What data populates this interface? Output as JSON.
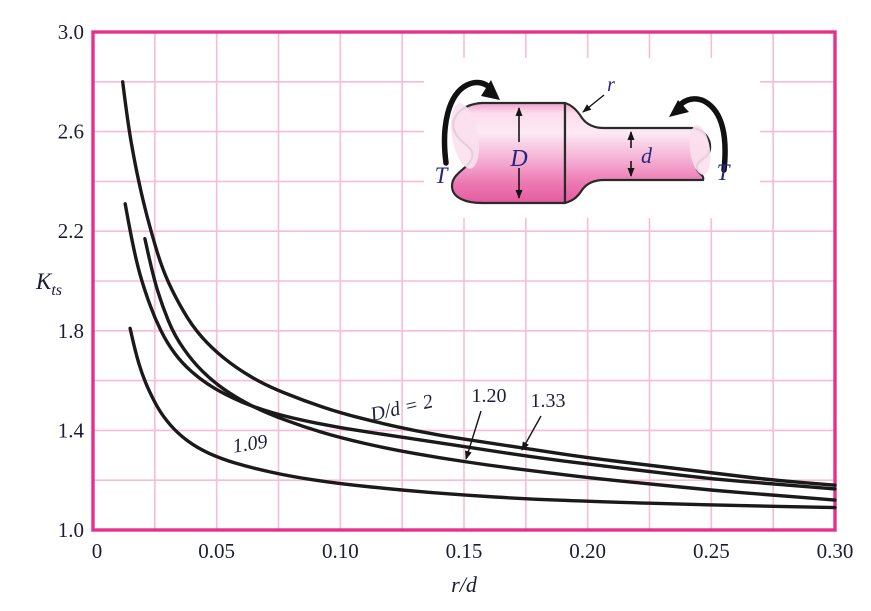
{
  "figure": {
    "background": "#ffffff",
    "colors": {
      "grid": "#f8bcd8",
      "border": "#e6308f",
      "curve": "#1a1a1a",
      "tick_text": "#1c1c35",
      "annotation_text": "#1e1e3f",
      "diagram_letter": "#26267d",
      "shaft_outline": "#2a2a2a",
      "shaft_light": "#fbdcec",
      "shaft_dark": "#e55b9f"
    }
  },
  "chart_data": {
    "type": "line",
    "title": "",
    "xlabel": "r/d",
    "ylabel_main": "K",
    "ylabel_sub": "ts",
    "xlim": [
      0,
      0.3
    ],
    "ylim": [
      1.0,
      3.0
    ],
    "grid": "on, pink minor grid every 0.025 in x and 0.2 in y",
    "legend_position": "labels on curves",
    "x_ticks": {
      "values": [
        0,
        0.05,
        0.1,
        0.15,
        0.2,
        0.25,
        0.3
      ],
      "labels": [
        "0",
        "0.05",
        "0.10",
        "0.15",
        "0.20",
        "0.25",
        "0.30"
      ]
    },
    "y_ticks": {
      "values": [
        3.0,
        2.6,
        2.2,
        1.8,
        1.4,
        1.0
      ],
      "labels": [
        "3.0",
        "2.6",
        "2.2",
        "1.8",
        "1.4",
        "1.0"
      ]
    },
    "series": [
      {
        "name": "D/d = 2",
        "points": [
          [
            0.012,
            2.8
          ],
          [
            0.014,
            2.64
          ],
          [
            0.017,
            2.47
          ],
          [
            0.02,
            2.33
          ],
          [
            0.024,
            2.18
          ],
          [
            0.028,
            2.05
          ],
          [
            0.033,
            1.94
          ],
          [
            0.04,
            1.82
          ],
          [
            0.048,
            1.73
          ],
          [
            0.058,
            1.65
          ],
          [
            0.07,
            1.58
          ],
          [
            0.085,
            1.52
          ],
          [
            0.1,
            1.47
          ],
          [
            0.12,
            1.42
          ],
          [
            0.14,
            1.38
          ],
          [
            0.16,
            1.35
          ],
          [
            0.18,
            1.32
          ],
          [
            0.2,
            1.29
          ],
          [
            0.225,
            1.26
          ],
          [
            0.25,
            1.23
          ],
          [
            0.275,
            1.2
          ],
          [
            0.3,
            1.18
          ]
        ]
      },
      {
        "name": "D/d = 1.33",
        "points": [
          [
            0.013,
            2.31
          ],
          [
            0.015,
            2.2
          ],
          [
            0.018,
            2.06
          ],
          [
            0.021,
            1.96
          ],
          [
            0.025,
            1.85
          ],
          [
            0.03,
            1.75
          ],
          [
            0.036,
            1.67
          ],
          [
            0.044,
            1.6
          ],
          [
            0.054,
            1.54
          ],
          [
            0.066,
            1.49
          ],
          [
            0.08,
            1.45
          ],
          [
            0.1,
            1.41
          ],
          [
            0.12,
            1.38
          ],
          [
            0.14,
            1.35
          ],
          [
            0.16,
            1.32
          ],
          [
            0.18,
            1.29
          ],
          [
            0.2,
            1.265
          ],
          [
            0.225,
            1.235
          ],
          [
            0.25,
            1.205
          ],
          [
            0.275,
            1.185
          ],
          [
            0.3,
            1.165
          ]
        ]
      },
      {
        "name": "D/d = 1.20",
        "points": [
          [
            0.021,
            2.17
          ],
          [
            0.024,
            2.03
          ],
          [
            0.028,
            1.9
          ],
          [
            0.033,
            1.78
          ],
          [
            0.04,
            1.68
          ],
          [
            0.048,
            1.6
          ],
          [
            0.058,
            1.53
          ],
          [
            0.07,
            1.47
          ],
          [
            0.085,
            1.415
          ],
          [
            0.1,
            1.37
          ],
          [
            0.12,
            1.325
          ],
          [
            0.14,
            1.29
          ],
          [
            0.16,
            1.26
          ],
          [
            0.18,
            1.235
          ],
          [
            0.2,
            1.21
          ],
          [
            0.225,
            1.185
          ],
          [
            0.25,
            1.16
          ],
          [
            0.275,
            1.14
          ],
          [
            0.3,
            1.12
          ]
        ]
      },
      {
        "name": "D/d = 1.09",
        "points": [
          [
            0.015,
            1.81
          ],
          [
            0.017,
            1.72
          ],
          [
            0.02,
            1.62
          ],
          [
            0.024,
            1.53
          ],
          [
            0.028,
            1.46
          ],
          [
            0.034,
            1.39
          ],
          [
            0.042,
            1.33
          ],
          [
            0.052,
            1.285
          ],
          [
            0.064,
            1.25
          ],
          [
            0.08,
            1.215
          ],
          [
            0.1,
            1.185
          ],
          [
            0.125,
            1.16
          ],
          [
            0.15,
            1.14
          ],
          [
            0.175,
            1.125
          ],
          [
            0.2,
            1.115
          ],
          [
            0.25,
            1.1
          ],
          [
            0.3,
            1.09
          ]
        ]
      }
    ]
  },
  "curve_labels": {
    "dd2": "D/d = 2",
    "l120": "1.20",
    "l133": "1.33",
    "l109": "1.09"
  },
  "inset": {
    "torque_left": "T",
    "torque_right": "T",
    "big_diameter": "D",
    "small_diameter": "d",
    "fillet_radius": "r"
  }
}
